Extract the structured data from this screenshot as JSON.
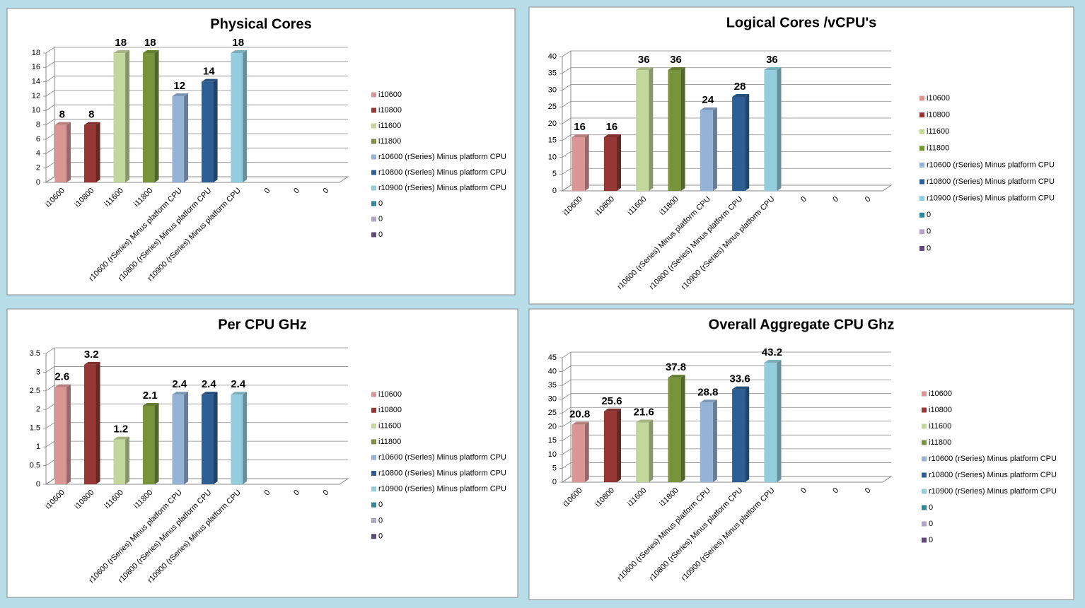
{
  "chart_data": [
    {
      "type": "bar",
      "title": "Physical Cores",
      "categories": [
        "i10600",
        "i10800",
        "i11600",
        "i11800",
        "r10600 (rSeries) Minus platform CPU",
        "r10800 (rSeries) Minus platform CPU",
        "r10900 (rSeries) Minus platform CPU",
        "0",
        "0",
        "0"
      ],
      "values": [
        8,
        8,
        18,
        18,
        12,
        14,
        18,
        null,
        null,
        null
      ],
      "colors": [
        "#d99694",
        "#953735",
        "#c3d69b",
        "#77933c",
        "#95b3d7",
        "#2e5f94",
        "#93cddd",
        "#31859c",
        "#b3a2c7",
        "#604a7b"
      ],
      "ylim": [
        0,
        18
      ],
      "yticks": [
        0,
        2,
        4,
        6,
        8,
        10,
        12,
        14,
        16,
        18
      ],
      "grid": true,
      "legend": "right"
    },
    {
      "type": "bar",
      "title": "Logical Cores /vCPU's",
      "categories": [
        "i10600",
        "i10800",
        "i11600",
        "i11800",
        "r10600 (rSeries) Minus platform CPU",
        "r10800 (rSeries) Minus platform CPU",
        "r10900 (rSeries) Minus platform CPU",
        "0",
        "0",
        "0"
      ],
      "values": [
        16,
        16,
        36,
        36,
        24,
        28,
        36,
        null,
        null,
        null
      ],
      "colors": [
        "#d99694",
        "#953735",
        "#c3d69b",
        "#77933c",
        "#95b3d7",
        "#2e5f94",
        "#93cddd",
        "#31859c",
        "#b3a2c7",
        "#604a7b"
      ],
      "ylim": [
        0,
        40
      ],
      "yticks": [
        0,
        5,
        10,
        15,
        20,
        25,
        30,
        35,
        40
      ],
      "grid": true,
      "legend": "right"
    },
    {
      "type": "bar",
      "title": "Per CPU GHz",
      "categories": [
        "i10600",
        "i10800",
        "i11600",
        "i11800",
        "r10600 (rSeries) Minus platform CPU",
        "r10800 (rSeries) Minus platform CPU",
        "r10900 (rSeries) Minus platform CPU",
        "0",
        "0",
        "0"
      ],
      "values": [
        2.6,
        3.2,
        1.2,
        2.1,
        2.4,
        2.4,
        2.4,
        null,
        null,
        null
      ],
      "colors": [
        "#d99694",
        "#953735",
        "#c3d69b",
        "#77933c",
        "#95b3d7",
        "#2e5f94",
        "#93cddd",
        "#31859c",
        "#b3a2c7",
        "#604a7b"
      ],
      "ylim": [
        0,
        3.5
      ],
      "yticks": [
        0,
        0.5,
        1,
        1.5,
        2,
        2.5,
        3,
        3.5
      ],
      "grid": true,
      "legend": "right"
    },
    {
      "type": "bar",
      "title": "Overall Aggregate CPU Ghz",
      "categories": [
        "i10600",
        "i10800",
        "i11600",
        "i11800",
        "r10600 (rSeries) Minus platform CPU",
        "r10800 (rSeries) Minus platform CPU",
        "r10900 (rSeries) Minus platform CPU",
        "0",
        "0",
        "0"
      ],
      "values": [
        20.8,
        25.6,
        21.6,
        37.8,
        28.8,
        33.6,
        43.2,
        null,
        null,
        null
      ],
      "colors": [
        "#d99694",
        "#953735",
        "#c3d69b",
        "#77933c",
        "#95b3d7",
        "#2e5f94",
        "#93cddd",
        "#31859c",
        "#b3a2c7",
        "#604a7b"
      ],
      "ylim": [
        0,
        45
      ],
      "yticks": [
        0,
        5,
        10,
        15,
        20,
        25,
        30,
        35,
        40,
        45
      ],
      "grid": true,
      "legend": "right"
    }
  ]
}
